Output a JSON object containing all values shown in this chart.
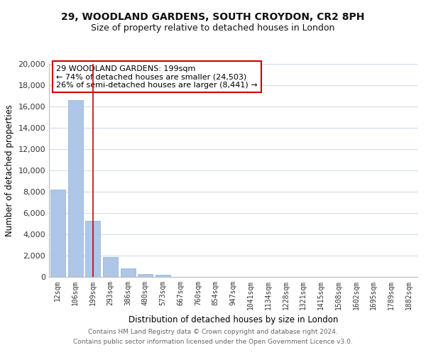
{
  "title_line1": "29, WOODLAND GARDENS, SOUTH CROYDON, CR2 8PH",
  "title_line2": "Size of property relative to detached houses in London",
  "xlabel": "Distribution of detached houses by size in London",
  "ylabel": "Number of detached properties",
  "bar_labels": [
    "12sqm",
    "106sqm",
    "199sqm",
    "293sqm",
    "386sqm",
    "480sqm",
    "573sqm",
    "667sqm",
    "760sqm",
    "854sqm",
    "947sqm",
    "1041sqm",
    "1134sqm",
    "1228sqm",
    "1321sqm",
    "1415sqm",
    "1508sqm",
    "1602sqm",
    "1695sqm",
    "1789sqm",
    "1882sqm"
  ],
  "bar_values": [
    8200,
    16600,
    5300,
    1850,
    800,
    300,
    200,
    0,
    0,
    0,
    0,
    0,
    0,
    0,
    0,
    0,
    0,
    0,
    0,
    0,
    0
  ],
  "bar_color": "#aec6e8",
  "bar_edge_color": "#8ab0d8",
  "vline_x_index": 2,
  "vline_color": "#cc0000",
  "ylim": [
    0,
    20000
  ],
  "yticks": [
    0,
    2000,
    4000,
    6000,
    8000,
    10000,
    12000,
    14000,
    16000,
    18000,
    20000
  ],
  "annotation_title": "29 WOODLAND GARDENS: 199sqm",
  "annotation_line1": "← 74% of detached houses are smaller (24,503)",
  "annotation_line2": "26% of semi-detached houses are larger (8,441) →",
  "footer_line1": "Contains HM Land Registry data © Crown copyright and database right 2024.",
  "footer_line2": "Contains public sector information licensed under the Open Government Licence v3.0.",
  "background_color": "#ffffff",
  "grid_color": "#d0dcea"
}
